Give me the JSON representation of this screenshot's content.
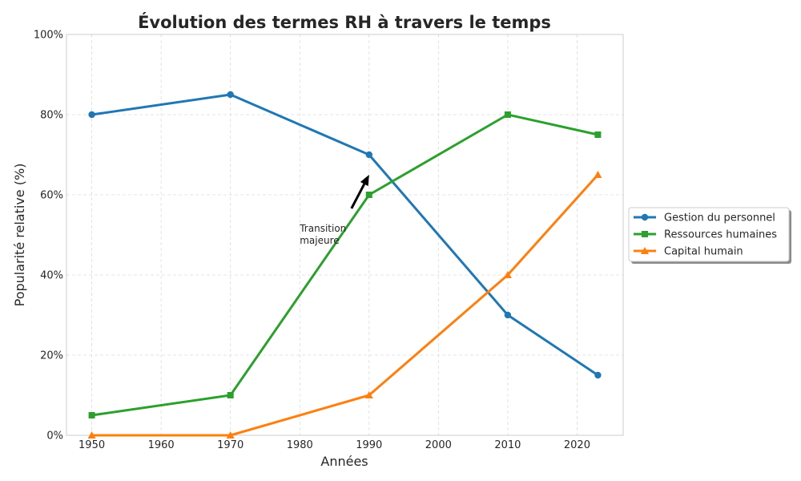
{
  "chart_data": {
    "type": "line",
    "title": "Évolution des termes RH à travers le temps",
    "xlabel": "Années",
    "ylabel": "Popularité relative (%)",
    "xlim": [
      1946.35,
      2026.65
    ],
    "ylim": [
      0,
      100
    ],
    "x_ticks": [
      1950,
      1960,
      1970,
      1980,
      1990,
      2000,
      2010,
      2020
    ],
    "y_ticks": [
      0,
      20,
      40,
      60,
      80,
      100
    ],
    "y_tick_format": "{v}%",
    "grid": true,
    "legend_position": "center-right-outside",
    "x": [
      1950,
      1970,
      1990,
      2010,
      2023
    ],
    "series": [
      {
        "name": "Gestion du personnel",
        "values": [
          80,
          85,
          70,
          30,
          15
        ],
        "color": "#1f77b4",
        "marker": "circle"
      },
      {
        "name": "Ressources humaines",
        "values": [
          5,
          10,
          60,
          80,
          75
        ],
        "color": "#2ca02c",
        "marker": "square"
      },
      {
        "name": "Capital humain",
        "values": [
          0,
          0,
          10,
          40,
          65
        ],
        "color": "#ff7f0e",
        "marker": "triangle"
      }
    ],
    "annotations": [
      {
        "text_lines": [
          "Transition",
          "majeure"
        ],
        "text_x": 1980,
        "text_y": 50,
        "arrow_to_x": 1990,
        "arrow_to_y": 65
      }
    ]
  }
}
